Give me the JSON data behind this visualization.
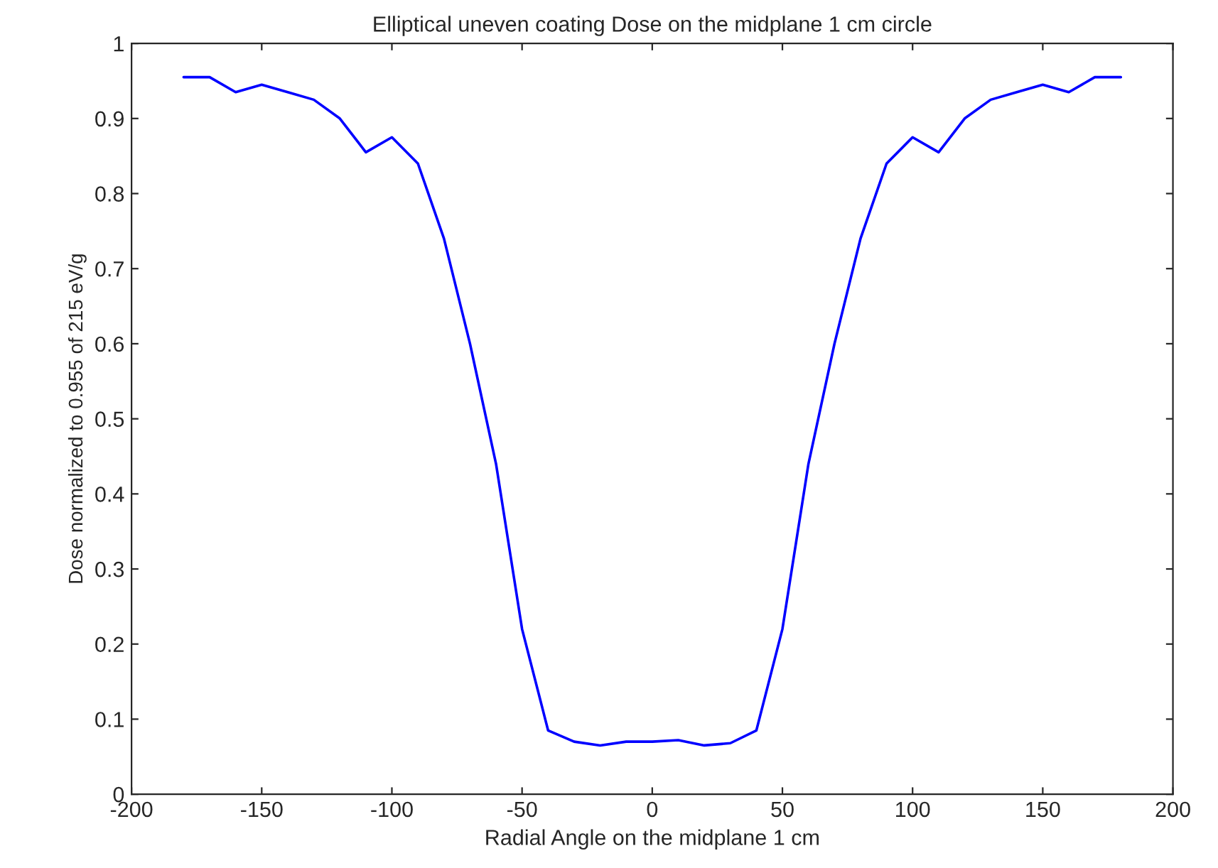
{
  "chart_data": {
    "type": "line",
    "title": "Elliptical uneven coating Dose on the midplane 1 cm circle",
    "xlabel": "Radial Angle on the midplane 1 cm",
    "ylabel": "Dose normalized to 0.955 of 215 eV/g",
    "x": [
      -180,
      -170,
      -160,
      -150,
      -140,
      -130,
      -120,
      -110,
      -100,
      -90,
      -80,
      -70,
      -60,
      -50,
      -40,
      -30,
      -20,
      -10,
      0,
      10,
      20,
      30,
      40,
      50,
      60,
      70,
      80,
      90,
      100,
      110,
      120,
      130,
      140,
      150,
      160,
      170,
      180
    ],
    "series": [
      {
        "color": "#0000ff",
        "values": [
          0.955,
          0.955,
          0.935,
          0.945,
          0.935,
          0.925,
          0.9,
          0.855,
          0.875,
          0.84,
          0.74,
          0.6,
          0.44,
          0.22,
          0.085,
          0.07,
          0.065,
          0.07,
          0.07,
          0.072,
          0.065,
          0.068,
          0.085,
          0.22,
          0.44,
          0.6,
          0.74,
          0.84,
          0.875,
          0.855,
          0.9,
          0.925,
          0.935,
          0.945,
          0.935,
          0.955,
          0.955
        ]
      }
    ],
    "xlim": [
      -200,
      200
    ],
    "xticks": [
      -200,
      -150,
      -100,
      -50,
      0,
      50,
      100,
      150,
      200
    ],
    "ylim": [
      0,
      1
    ],
    "yticks": [
      0,
      0.1,
      0.2,
      0.3,
      0.4,
      0.5,
      0.6,
      0.7,
      0.8,
      0.9,
      1
    ],
    "grid": false,
    "legend": false,
    "marker": "none",
    "line_style": "solid"
  }
}
